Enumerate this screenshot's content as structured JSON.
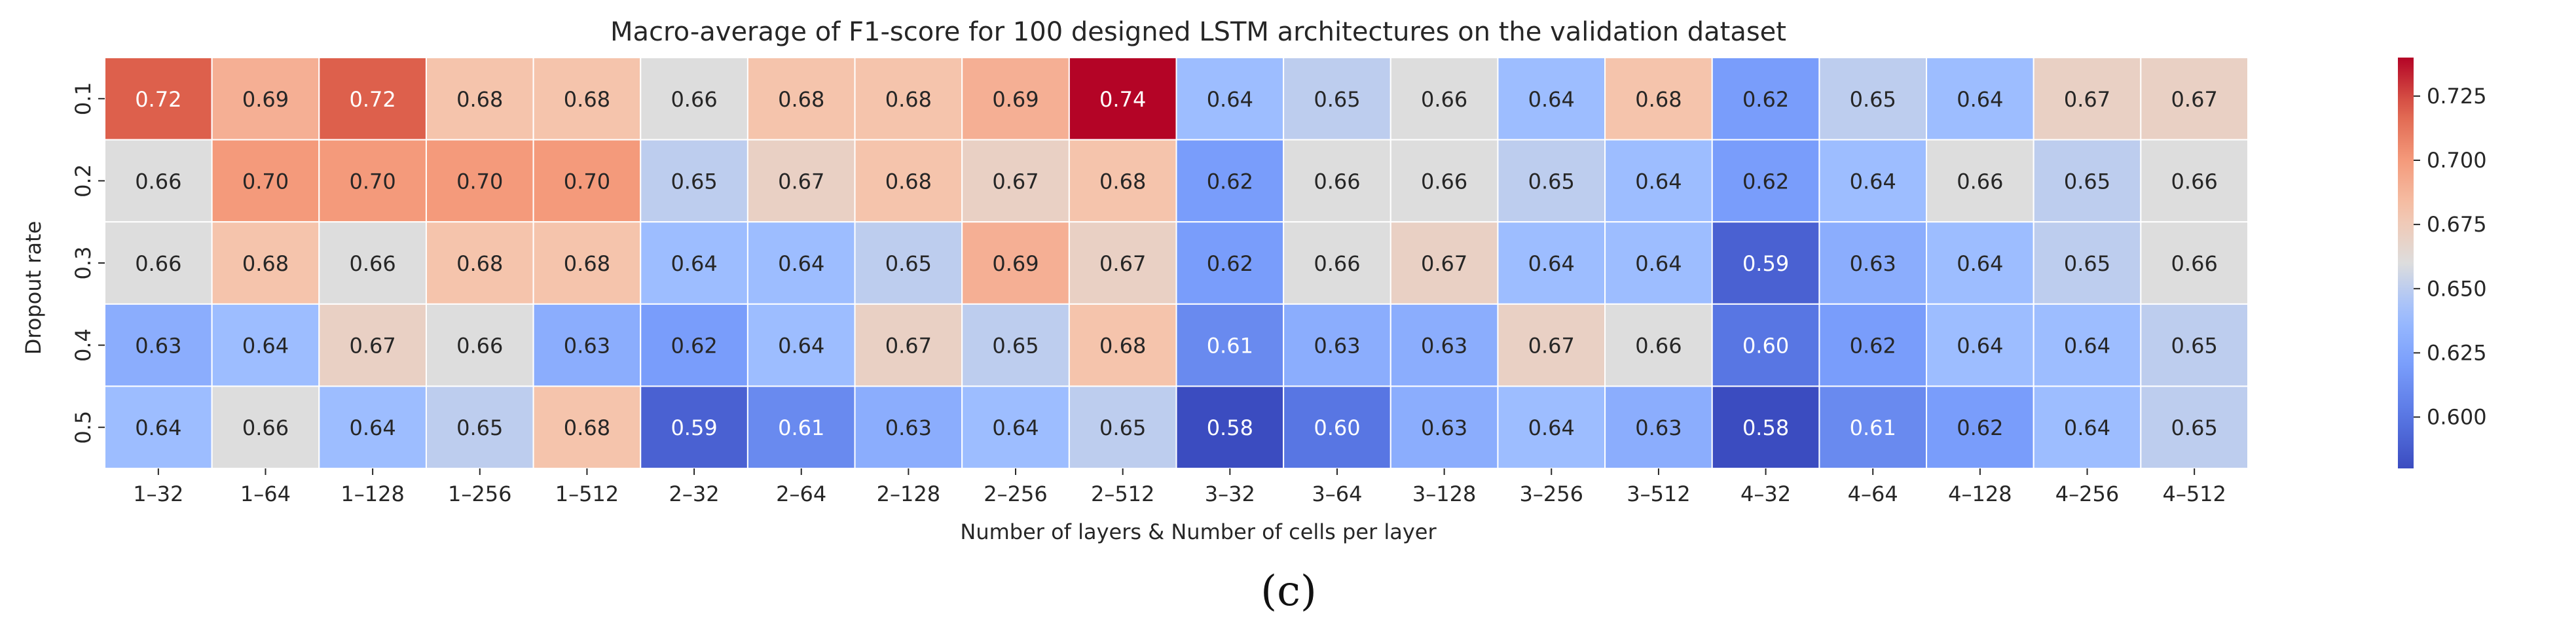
{
  "chart_data": {
    "type": "heatmap",
    "title": "Macro-average of F1-score for 100 designed LSTM architectures on the validation dataset",
    "xlabel": "Number of layers & Number of cells per layer",
    "ylabel": "Dropout rate",
    "x_categories": [
      "1–32",
      "1–64",
      "1–128",
      "1–256",
      "1–512",
      "2–32",
      "2–64",
      "2–128",
      "2–256",
      "2–512",
      "3–32",
      "3–64",
      "3–128",
      "3–256",
      "3–512",
      "4–32",
      "4–64",
      "4–128",
      "4–256",
      "4–512"
    ],
    "y_categories": [
      "0.1",
      "0.2",
      "0.3",
      "0.4",
      "0.5"
    ],
    "values": [
      [
        0.72,
        0.69,
        0.72,
        0.68,
        0.68,
        0.66,
        0.68,
        0.68,
        0.69,
        0.74,
        0.64,
        0.65,
        0.66,
        0.64,
        0.68,
        0.62,
        0.65,
        0.64,
        0.67,
        0.67
      ],
      [
        0.66,
        0.7,
        0.7,
        0.7,
        0.7,
        0.65,
        0.67,
        0.68,
        0.67,
        0.68,
        0.62,
        0.66,
        0.66,
        0.65,
        0.64,
        0.62,
        0.64,
        0.66,
        0.65,
        0.66
      ],
      [
        0.66,
        0.68,
        0.66,
        0.68,
        0.68,
        0.64,
        0.64,
        0.65,
        0.69,
        0.67,
        0.62,
        0.66,
        0.67,
        0.64,
        0.64,
        0.59,
        0.63,
        0.64,
        0.65,
        0.66
      ],
      [
        0.63,
        0.64,
        0.67,
        0.66,
        0.63,
        0.62,
        0.64,
        0.67,
        0.65,
        0.68,
        0.61,
        0.63,
        0.63,
        0.67,
        0.66,
        0.6,
        0.62,
        0.64,
        0.64,
        0.65
      ],
      [
        0.64,
        0.66,
        0.64,
        0.65,
        0.68,
        0.59,
        0.61,
        0.63,
        0.64,
        0.65,
        0.58,
        0.6,
        0.63,
        0.64,
        0.63,
        0.58,
        0.61,
        0.62,
        0.64,
        0.65
      ]
    ],
    "colormap": "coolwarm",
    "vmin": 0.58,
    "vmax": 0.74,
    "colorbar_ticks": [
      "0.600",
      "0.625",
      "0.650",
      "0.675",
      "0.700",
      "0.725"
    ],
    "value_format": "2 decimals"
  },
  "caption": "(c)"
}
